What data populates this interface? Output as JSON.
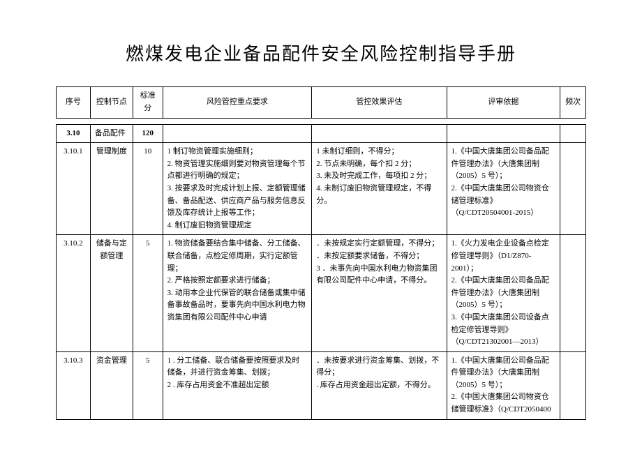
{
  "title": "燃煤发电企业备品配件安全风险控制指导手册",
  "columns": {
    "seq": "序号",
    "node": "控制节点",
    "score": "标准分",
    "req": "风险管控重点要求",
    "eval": "管控效果评估",
    "basis": "评审依据",
    "freq": "频次"
  },
  "section": {
    "seq": "3.10",
    "node": "备品配件",
    "score": "120"
  },
  "rows": [
    {
      "seq": "3.10.1",
      "node": "管理制度",
      "score": "10",
      "req": "1 制订物资管理实施细则；\n2. 物资管理实施细则要对物资管理每个节点都进行明确的规定；\n3. 按要求及时完成计划上报、定额管理储备、备品配送、供应商产品与服务信息反馈及库存统计上报等工作；\n4. 制订废旧物资管理规定",
      "eval": "1 未制订细则，不得分；\n2. 节点未明确，每个扣 2 分；\n3. 未及时完成工作，每项扣 2 分；\n4. 未制订废旧物资管理规定，不得分。",
      "basis": "1.《中国大唐集团公司备品配件管理办法》（大唐集团制（2005）5 号）；\n2.《中国大唐集团公司物资仓储管理标准》（Q/CDT20504001-2015）",
      "freq": ""
    },
    {
      "seq": "3.10.2",
      "node": "储备与定额管理",
      "score": "5",
      "req": "1. 物资储备要结合集中储备、分工储备、联合储备，点检定修周期，实行定额管理；\n2. 严格按照定额要求进行储备；\n3. 动用本企业代保管的联合储备或集中储备事故备品时，要事先向中国水利电力物资集团有限公司配件中心申请",
      "eval": "．未按规定实行定额管理，不得分；\n．未按定额要求储备，不得分；\n 3      ．未事先向中国水利电力物资集团有限公司配件中心申请，不得分。",
      "basis": "1.《火力发电企业设备点检定修管理导则》（D1/Z870-2001）；\n2.《中国大唐集团公司备品配件管理办法》（大唐集团制（2005）5 号）；\n3.《中国大唐集团公司设备点检定修管理导则》（Q/CDT21302001—2013）",
      "freq": ""
    },
    {
      "seq": "3.10.3",
      "node": "资金管理",
      "score": "5",
      "req": "1      . 分工储备、联合储备要按照要求及时储备，并进行资金筹集、划拨；\n2      . 库存占用资金不准超出定额",
      "eval": "．未按要求进行资金筹集、划拨，不得分；\n. 库存占用资金超出定额，不得分。",
      "basis": "1.《中国大唐集团公司备品配件管理办法》（大唐集团制（2005）5 号）；\n2.《中国大唐集团公司物资仓储管理标准》（Q/CDT2050400",
      "freq": ""
    }
  ]
}
